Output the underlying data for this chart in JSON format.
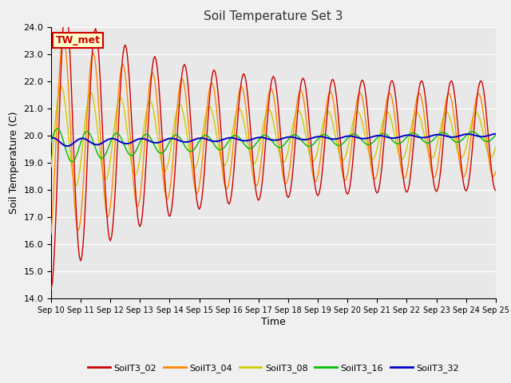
{
  "title": "Soil Temperature Set 3",
  "xlabel": "Time",
  "ylabel": "Soil Temperature (C)",
  "ylim": [
    14.0,
    24.0
  ],
  "yticks": [
    14.0,
    15.0,
    16.0,
    17.0,
    18.0,
    19.0,
    20.0,
    21.0,
    22.0,
    23.0,
    24.0
  ],
  "plot_bg": "#e8e8e8",
  "fig_bg": "#f0f0f0",
  "series_colors": {
    "SoilT3_02": "#cc0000",
    "SoilT3_04": "#ff8800",
    "SoilT3_08": "#cccc00",
    "SoilT3_16": "#00bb00",
    "SoilT3_32": "#0000cc"
  },
  "annotation_text": "TW_met",
  "annotation_bg": "#ffffcc",
  "annotation_border": "#cc0000",
  "n_days": 15,
  "start_day": 10
}
